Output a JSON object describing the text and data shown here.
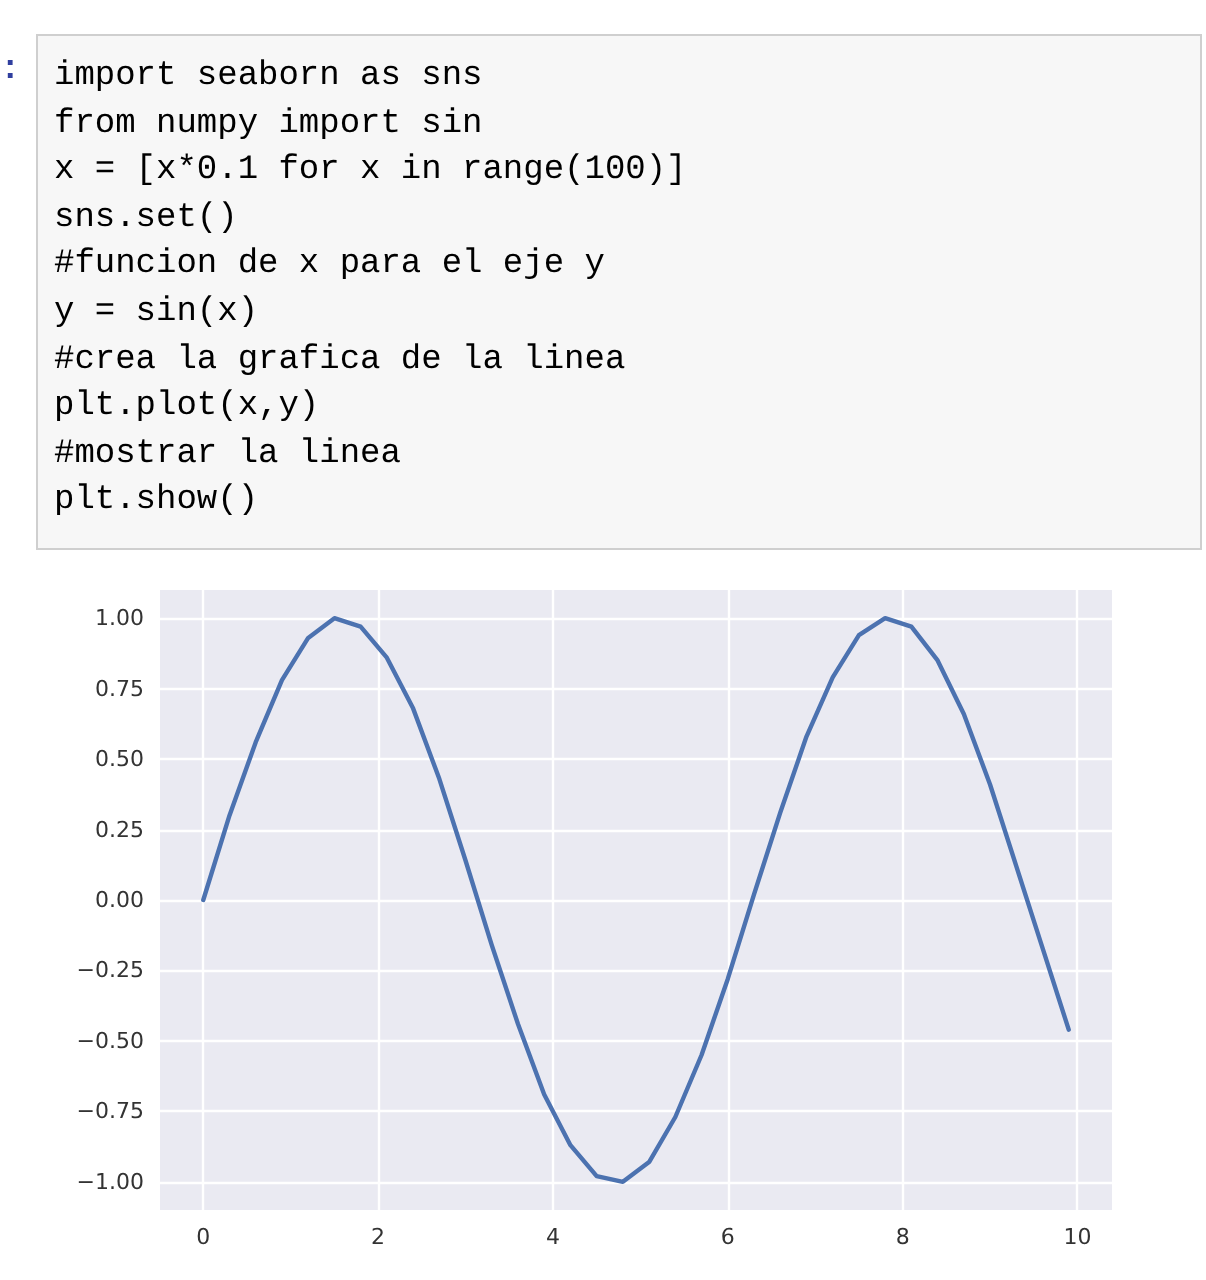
{
  "chart_data": {
    "type": "line",
    "annotations": [
      ":",
      "import seaborn as sns",
      "from numpy import sin",
      "x = [x*0.1 for x in range(100)]",
      "sns.set()",
      "#funcion de x para el eje y",
      "y = sin(x)",
      "#crea la grafica de la linea",
      "plt.plot(x,y)",
      "#mostrar la linea",
      "plt.show()"
    ],
    "x": [
      0,
      0.3,
      0.6,
      0.9,
      1.2,
      1.5,
      1.8,
      2.1,
      2.4,
      2.7,
      3.0,
      3.3,
      3.6,
      3.9,
      4.2,
      4.5,
      4.8,
      5.1,
      5.4,
      5.7,
      6.0,
      6.3,
      6.6,
      6.9,
      7.2,
      7.5,
      7.8,
      8.1,
      8.4,
      8.7,
      9.0,
      9.3,
      9.6,
      9.9
    ],
    "series": [
      {
        "color": "#4c72b0",
        "values": [
          0,
          0.3,
          0.56,
          0.78,
          0.93,
          1.0,
          0.97,
          0.86,
          0.68,
          0.43,
          0.14,
          -0.16,
          -0.44,
          -0.69,
          -0.87,
          -0.98,
          -1.0,
          -0.93,
          -0.77,
          -0.55,
          -0.28,
          0.02,
          0.31,
          0.58,
          0.79,
          0.94,
          1.0,
          0.97,
          0.85,
          0.66,
          0.41,
          0.12,
          -0.17,
          -0.46
        ]
      }
    ],
    "xlim": [
      -0.495,
      10.395
    ],
    "xticks": [
      0,
      2,
      4,
      6,
      8,
      10
    ],
    "ylim": [
      -1.1,
      1.1
    ],
    "yticks": [
      {
        "value": -1,
        "label": "−1.00"
      },
      {
        "value": -0.75,
        "label": "−0.75"
      },
      {
        "value": -0.5,
        "label": "−0.50"
      },
      {
        "value": -0.25,
        "label": "−0.25"
      },
      {
        "value": 0,
        "label": "0.00"
      },
      {
        "value": 0.25,
        "label": "0.25"
      },
      {
        "value": 0.5,
        "label": "0.50"
      },
      {
        "value": 0.75,
        "label": "0.75"
      },
      {
        "value": 1,
        "label": "1.00"
      }
    ],
    "grid": true,
    "marker": "none",
    "line_style": "solid"
  }
}
